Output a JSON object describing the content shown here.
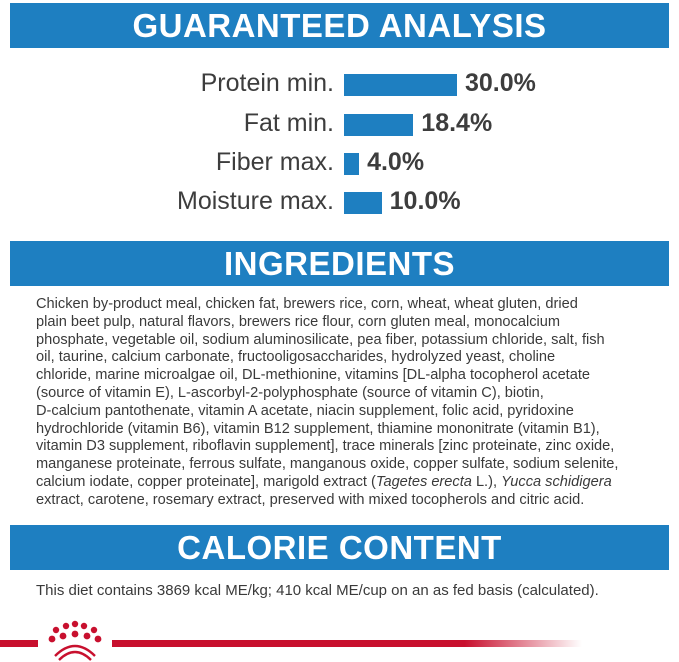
{
  "analysis": {
    "title": "GUARANTEED ANALYSIS",
    "rows": [
      {
        "label": "Protein min.",
        "value": "30.0%"
      },
      {
        "label": "Fat min.",
        "value": "18.4%"
      },
      {
        "label": "Fiber max.",
        "value": "4.0%"
      },
      {
        "label": "Moisture max.",
        "value": "10.0%"
      }
    ]
  },
  "chart_data": {
    "type": "bar",
    "orientation": "horizontal",
    "categories": [
      "Protein min.",
      "Fat min.",
      "Fiber max.",
      "Moisture max."
    ],
    "values": [
      30.0,
      18.4,
      4.0,
      10.0
    ],
    "unit": "%",
    "color": "#1e7fc1"
  },
  "ingredients": {
    "title": "INGREDIENTS",
    "lines": [
      "Chicken by-product meal, chicken fat, brewers rice, corn, wheat, wheat gluten, dried",
      "plain beet pulp, natural flavors, brewers rice flour, corn gluten meal, monocalcium",
      "phosphate, vegetable oil, sodium aluminosilicate, pea fiber, potassium chloride, salt, fish",
      "oil, taurine, calcium carbonate, fructooligosaccharides, hydrolyzed yeast, choline",
      "chloride, marine microalgae oil, DL-methionine, vitamins [DL-alpha tocopherol acetate",
      "(source of vitamin E), L-ascorbyl-2-polyphosphate (source of vitamin C), biotin,",
      "D-calcium pantothenate, vitamin A acetate, niacin supplement, folic acid, pyridoxine",
      "hydrochloride (vitamin B6), vitamin B12 supplement, thiamine mononitrate (vitamin B1),",
      "vitamin D3 supplement, riboflavin supplement], trace minerals [zinc proteinate, zinc oxide,",
      "manganese proteinate, ferrous sulfate, manganous oxide, copper sulfate, sodium selenite,"
    ],
    "line_11": {
      "a": "calcium iodate, copper proteinate], marigold extract (",
      "b": "Tagetes erecta",
      "c": " L.), ",
      "d": "Yucca schidigera"
    },
    "line_12": "extract, carotene, rosemary extract, preserved with mixed tocopherols and citric acid."
  },
  "calorie": {
    "title": "CALORIE CONTENT",
    "text": "This diet contains 3869 kcal ME/kg; 410 kcal ME/cup on an as fed basis (calculated)."
  },
  "brand": {
    "logo": "Royal Canin crown",
    "color": "#c8102e"
  }
}
